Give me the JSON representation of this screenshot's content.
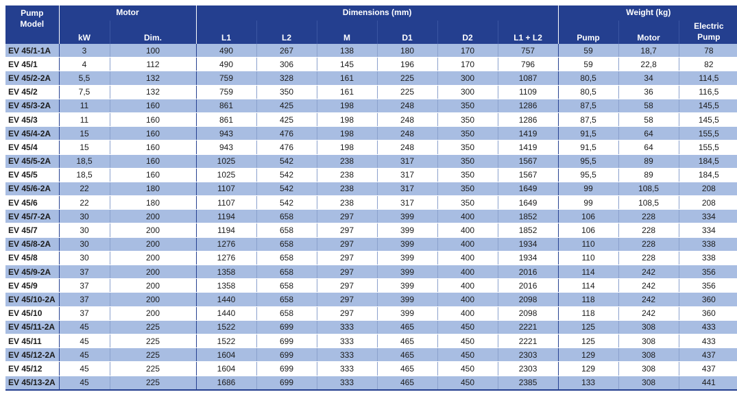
{
  "header": {
    "pump_model": "Pump\nModel",
    "motor": "Motor",
    "dimensions": "Dimensions (mm)",
    "weight": "Weight (kg)",
    "kw": "kW",
    "dim": "Dim.",
    "l1": "L1",
    "l2": "L2",
    "m": "M",
    "d1": "D1",
    "d2": "D2",
    "l1l2": "L1 + L2",
    "pump": "Pump",
    "motor_w": "Motor",
    "electric_pump": "Electric\nPump"
  },
  "rows": [
    [
      "EV 45/1-1A",
      "3",
      "100",
      "490",
      "267",
      "138",
      "180",
      "170",
      "757",
      "59",
      "18,7",
      "78"
    ],
    [
      "EV 45/1",
      "4",
      "112",
      "490",
      "306",
      "145",
      "196",
      "170",
      "796",
      "59",
      "22,8",
      "82"
    ],
    [
      "EV 45/2-2A",
      "5,5",
      "132",
      "759",
      "328",
      "161",
      "225",
      "300",
      "1087",
      "80,5",
      "34",
      "114,5"
    ],
    [
      "EV 45/2",
      "7,5",
      "132",
      "759",
      "350",
      "161",
      "225",
      "300",
      "1109",
      "80,5",
      "36",
      "116,5"
    ],
    [
      "EV 45/3-2A",
      "11",
      "160",
      "861",
      "425",
      "198",
      "248",
      "350",
      "1286",
      "87,5",
      "58",
      "145,5"
    ],
    [
      "EV 45/3",
      "11",
      "160",
      "861",
      "425",
      "198",
      "248",
      "350",
      "1286",
      "87,5",
      "58",
      "145,5"
    ],
    [
      "EV 45/4-2A",
      "15",
      "160",
      "943",
      "476",
      "198",
      "248",
      "350",
      "1419",
      "91,5",
      "64",
      "155,5"
    ],
    [
      "EV 45/4",
      "15",
      "160",
      "943",
      "476",
      "198",
      "248",
      "350",
      "1419",
      "91,5",
      "64",
      "155,5"
    ],
    [
      "EV 45/5-2A",
      "18,5",
      "160",
      "1025",
      "542",
      "238",
      "317",
      "350",
      "1567",
      "95,5",
      "89",
      "184,5"
    ],
    [
      "EV 45/5",
      "18,5",
      "160",
      "1025",
      "542",
      "238",
      "317",
      "350",
      "1567",
      "95,5",
      "89",
      "184,5"
    ],
    [
      "EV 45/6-2A",
      "22",
      "180",
      "1107",
      "542",
      "238",
      "317",
      "350",
      "1649",
      "99",
      "108,5",
      "208"
    ],
    [
      "EV 45/6",
      "22",
      "180",
      "1107",
      "542",
      "238",
      "317",
      "350",
      "1649",
      "99",
      "108,5",
      "208"
    ],
    [
      "EV 45/7-2A",
      "30",
      "200",
      "1194",
      "658",
      "297",
      "399",
      "400",
      "1852",
      "106",
      "228",
      "334"
    ],
    [
      "EV 45/7",
      "30",
      "200",
      "1194",
      "658",
      "297",
      "399",
      "400",
      "1852",
      "106",
      "228",
      "334"
    ],
    [
      "EV 45/8-2A",
      "30",
      "200",
      "1276",
      "658",
      "297",
      "399",
      "400",
      "1934",
      "110",
      "228",
      "338"
    ],
    [
      "EV 45/8",
      "30",
      "200",
      "1276",
      "658",
      "297",
      "399",
      "400",
      "1934",
      "110",
      "228",
      "338"
    ],
    [
      "EV 45/9-2A",
      "37",
      "200",
      "1358",
      "658",
      "297",
      "399",
      "400",
      "2016",
      "114",
      "242",
      "356"
    ],
    [
      "EV 45/9",
      "37",
      "200",
      "1358",
      "658",
      "297",
      "399",
      "400",
      "2016",
      "114",
      "242",
      "356"
    ],
    [
      "EV 45/10-2A",
      "37",
      "200",
      "1440",
      "658",
      "297",
      "399",
      "400",
      "2098",
      "118",
      "242",
      "360"
    ],
    [
      "EV 45/10",
      "37",
      "200",
      "1440",
      "658",
      "297",
      "399",
      "400",
      "2098",
      "118",
      "242",
      "360"
    ],
    [
      "EV 45/11-2A",
      "45",
      "225",
      "1522",
      "699",
      "333",
      "465",
      "450",
      "2221",
      "125",
      "308",
      "433"
    ],
    [
      "EV 45/11",
      "45",
      "225",
      "1522",
      "699",
      "333",
      "465",
      "450",
      "2221",
      "125",
      "308",
      "433"
    ],
    [
      "EV 45/12-2A",
      "45",
      "225",
      "1604",
      "699",
      "333",
      "465",
      "450",
      "2303",
      "129",
      "308",
      "437"
    ],
    [
      "EV 45/12",
      "45",
      "225",
      "1604",
      "699",
      "333",
      "465",
      "450",
      "2303",
      "129",
      "308",
      "437"
    ],
    [
      "EV 45/13-2A",
      "45",
      "225",
      "1686",
      "699",
      "333",
      "465",
      "450",
      "2385",
      "133",
      "308",
      "441"
    ]
  ],
  "colors": {
    "header_bg": "#243f8f",
    "band": "#a8bde2"
  }
}
